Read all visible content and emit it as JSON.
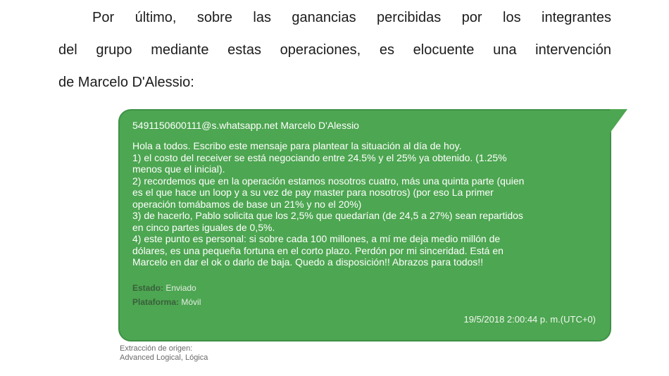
{
  "intro": {
    "lines": [
      "Por último, sobre las ganancias percibidas por los integrantes",
      "del grupo mediante estas operaciones, es elocuente una intervención",
      "de Marcelo D'Alessio:"
    ]
  },
  "chat_bubble": {
    "sender": "5491150600111@s.whatsapp.net Marcelo D'Alessio",
    "message": "Hola a todos. Escribo este mensaje para plantear la situación al día de hoy.\n1) el costo del receiver se está negociando entre 24.5% y el 25% ya obtenido. (1.25%\nmenos que el inicial).\n2) recordemos que en la operación estamos nosotros cuatro, más una quinta parte (quien\nes el que hace un loop y a su vez de pay master para nosotros) (por eso La primer\noperación tomábamos de base un 21% y no el 20%)\n3) de hacerlo, Pablo solicita que los 2,5% que quedarían (de 24,5 a 27%) sean repartidos\nen cinco partes iguales de 0,5%.\n4) este punto es personal: si sobre cada 100 millones, a mí me deja medio millón de\ndólares, es una pequeña fortuna en el corto plazo. Perdón por mi sinceridad. Está en\nMarcelo en dar el ok o darlo de baja. Quedo a disposición!! Abrazos para todos!!",
    "status_label": "Estado:",
    "status_value": "Enviado",
    "platform_label": "Plataforma:",
    "platform_value": "Móvil",
    "timestamp": "19/5/2018 2:00:44 p. m.(UTC+0)",
    "colors": {
      "bubble_green": "#4DA651",
      "bubble_border": "#3F9145",
      "text_white": "#FFFFFF"
    }
  },
  "footer": {
    "extraction_label": "Extracción de origen:",
    "extraction_value": "Advanced Logical, Lógica"
  }
}
